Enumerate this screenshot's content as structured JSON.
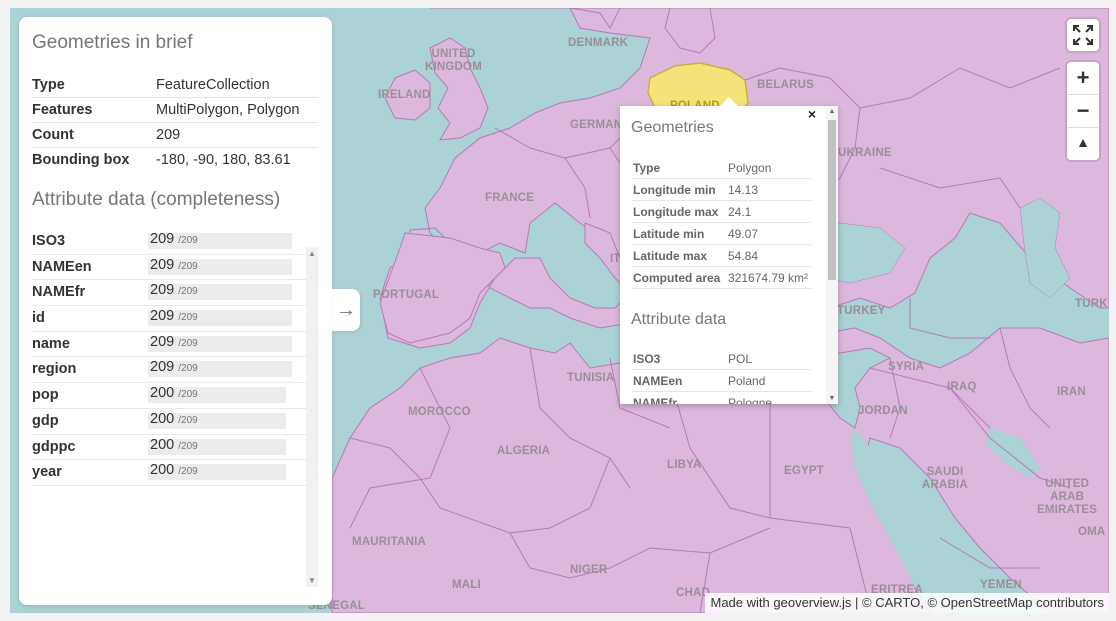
{
  "panel": {
    "title_geometries": "Geometries in brief",
    "geometry_info": [
      {
        "key": "Type",
        "value": "FeatureCollection"
      },
      {
        "key": "Features",
        "value": "MultiPolygon, Polygon"
      },
      {
        "key": "Count",
        "value": "209"
      },
      {
        "key": "Bounding box",
        "value": "-180, -90, 180, 83.61"
      }
    ],
    "title_attributes": "Attribute data (completeness)",
    "attributes": [
      {
        "key": "ISO3",
        "value": "209",
        "total": "/209",
        "fraction": 1.0
      },
      {
        "key": "NAMEen",
        "value": "209",
        "total": "/209",
        "fraction": 1.0
      },
      {
        "key": "NAMEfr",
        "value": "209",
        "total": "/209",
        "fraction": 1.0
      },
      {
        "key": "id",
        "value": "209",
        "total": "/209",
        "fraction": 1.0
      },
      {
        "key": "name",
        "value": "209",
        "total": "/209",
        "fraction": 1.0
      },
      {
        "key": "region",
        "value": "209",
        "total": "/209",
        "fraction": 1.0
      },
      {
        "key": "pop",
        "value": "200",
        "total": "/209",
        "fraction": 0.957
      },
      {
        "key": "gdp",
        "value": "200",
        "total": "/209",
        "fraction": 0.957
      },
      {
        "key": "gdppc",
        "value": "200",
        "total": "/209",
        "fraction": 0.957
      },
      {
        "key": "year",
        "value": "200",
        "total": "/209",
        "fraction": 0.957
      }
    ]
  },
  "toggle": {
    "icon": "arrow-right-icon",
    "glyph": "→"
  },
  "popup": {
    "close_glyph": "×",
    "title_geometries": "Geometries",
    "geometry_info": [
      {
        "key": "Type",
        "value": "Polygon"
      },
      {
        "key": "Longitude min",
        "value": "14.13"
      },
      {
        "key": "Longitude max",
        "value": "24.1"
      },
      {
        "key": "Latitude min",
        "value": "49.07"
      },
      {
        "key": "Latitude max",
        "value": "54.84"
      },
      {
        "key": "Computed area",
        "value": "321674.79 km²"
      }
    ],
    "title_attributes": "Attribute data",
    "attributes": [
      {
        "key": "ISO3",
        "value": "POL"
      },
      {
        "key": "NAMEen",
        "value": "Poland"
      },
      {
        "key": "NAMEfr",
        "value": "Pologne"
      }
    ]
  },
  "controls": {
    "fullscreen": "fullscreen-icon",
    "zoom_in": "+",
    "zoom_out": "−",
    "compass": "▲"
  },
  "map_labels": {
    "united_kingdom": "UNITED\nKINGDOM",
    "ireland": "IRELAND",
    "denmark": "DENMARK",
    "poland": "POLAND",
    "belarus": "BELARUS",
    "germany": "GERMANY",
    "france": "FRANCE",
    "portugal": "PORTUGAL",
    "italy": "ITALY",
    "ukraine": "UKRAINE",
    "turkey": "TURKEY",
    "turkmenistan": "TURK",
    "tunisia": "TUNISIA",
    "syria": "SYRIA",
    "iraq": "IRAQ",
    "iran": "IRAN",
    "morocco": "MOROCCO",
    "jordan": "JORDAN",
    "algeria": "ALGERIA",
    "libya": "LIBYA",
    "egypt": "EGYPT",
    "saudi_arabia": "SAUDI\nARABIA",
    "uae": "UNITED\nARAB\nEMIRATES",
    "oman": "OMA",
    "mauritania": "MAURITANIA",
    "mali": "MALI",
    "niger": "NIGER",
    "chad": "CHAD",
    "eritrea": "ERITREA",
    "yemen": "YEMEN",
    "senegal": "SENEGAL"
  },
  "attribution": {
    "prefix": "Made with ",
    "link1": "geoverview.js",
    "middle": " | © CARTO, © ",
    "link2": "OpenStreetMap",
    "suffix": " contributors"
  },
  "colors": {
    "land": "#dcb8dc",
    "water": "#abd2d4",
    "border": "#b57bb8",
    "highlight": "#f5e37a"
  }
}
